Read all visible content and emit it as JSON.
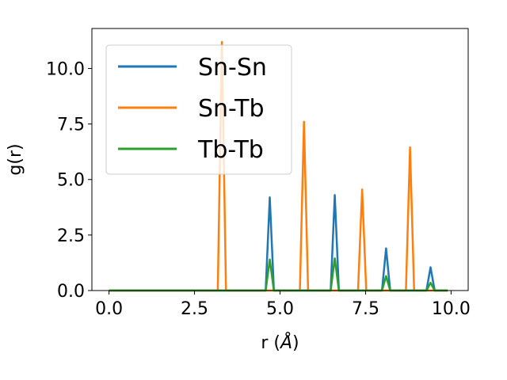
{
  "chart_data": {
    "type": "line",
    "title": "",
    "xlabel": "r (Å)",
    "ylabel": "g(r)",
    "xlim": [
      -0.5,
      10.5
    ],
    "ylim": [
      0,
      11.8
    ],
    "xticks": [
      0.0,
      2.5,
      5.0,
      7.5,
      10.0
    ],
    "xtick_labels": [
      "0.0",
      "2.5",
      "5.0",
      "7.5",
      "10.0"
    ],
    "yticks": [
      0.0,
      2.5,
      5.0,
      7.5,
      10.0
    ],
    "ytick_labels": [
      "0.0",
      "2.5",
      "5.0",
      "7.5",
      "10.0"
    ],
    "grid": false,
    "legend_position": "upper-left",
    "series": [
      {
        "name": "Sn-Sn",
        "color": "#1f77b4",
        "x": [
          0.0,
          4.58,
          4.7,
          4.82,
          6.48,
          6.6,
          6.72,
          7.98,
          8.1,
          8.22,
          9.28,
          9.4,
          9.52,
          9.9
        ],
        "y": [
          0,
          0,
          4.2,
          0,
          0,
          4.3,
          0,
          0,
          1.9,
          0,
          0,
          1.05,
          0,
          0
        ]
      },
      {
        "name": "Sn-Tb",
        "color": "#ff7f0e",
        "x": [
          0.0,
          3.18,
          3.3,
          3.42,
          5.58,
          5.7,
          5.82,
          7.28,
          7.4,
          7.52,
          8.68,
          8.8,
          8.92,
          9.9
        ],
        "y": [
          0,
          0,
          11.2,
          0,
          0,
          7.6,
          0,
          0,
          4.55,
          0,
          0,
          6.45,
          0,
          0
        ]
      },
      {
        "name": "Tb-Tb",
        "color": "#2ca02c",
        "x": [
          0.0,
          4.58,
          4.7,
          4.82,
          6.48,
          6.6,
          6.72,
          7.98,
          8.1,
          8.22,
          9.28,
          9.4,
          9.52,
          9.9
        ],
        "y": [
          0,
          0,
          1.4,
          0,
          0,
          1.45,
          0,
          0,
          0.65,
          0,
          0,
          0.35,
          0,
          0
        ]
      }
    ]
  }
}
